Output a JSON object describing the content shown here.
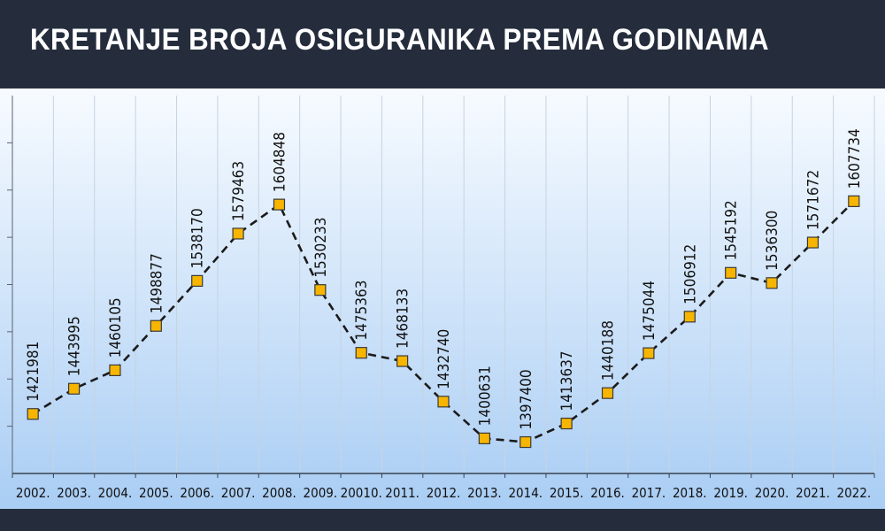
{
  "title": "KRETANJE BROJA OSIGURANIKA PREMA GODINAMA",
  "colors": {
    "background_top": "#f7fbff",
    "background_bottom": "#a9cdf4",
    "marker_fill": "#f7b500",
    "marker_stroke": "#3a3a3a",
    "line": "#1b1b1b",
    "header": "#252d3d"
  },
  "chart_data": {
    "type": "line",
    "title": "KRETANJE BROJA OSIGURANIKA PREMA GODINAMA",
    "xlabel": "",
    "ylabel": "",
    "categories": [
      "2002.",
      "2003.",
      "2004.",
      "2005.",
      "2006.",
      "2007.",
      "2008.",
      "2009.",
      "20010.",
      "2011.",
      "2012.",
      "2013.",
      "2014.",
      "2015.",
      "2016.",
      "2017.",
      "2018.",
      "2019.",
      "2020.",
      "2021.",
      "2022."
    ],
    "series": [
      {
        "values": [
          1421981,
          1443995,
          1460105,
          1498877,
          1538170,
          1579463,
          1604848,
          1530233,
          1475363,
          1468133,
          1432740,
          1400631,
          1397400,
          1413637,
          1440188,
          1475044,
          1506912,
          1545192,
          1536300,
          1571672,
          1607734
        ],
        "labels": [
          "1421981",
          "1443995",
          "1460105",
          "1498877",
          "1538170",
          "1579463",
          "1604848",
          "1530233",
          "1475363",
          "1468133",
          "1432740",
          "1400631",
          "1397400",
          "1413637",
          "1440188",
          "1475044",
          "1506912",
          "1545192",
          "1536300",
          "1571672",
          "1607734"
        ]
      }
    ],
    "ylim": [
      1370000,
      1700000
    ],
    "grid": true,
    "legend": "none",
    "line_style": "dashed",
    "marker": "square"
  }
}
